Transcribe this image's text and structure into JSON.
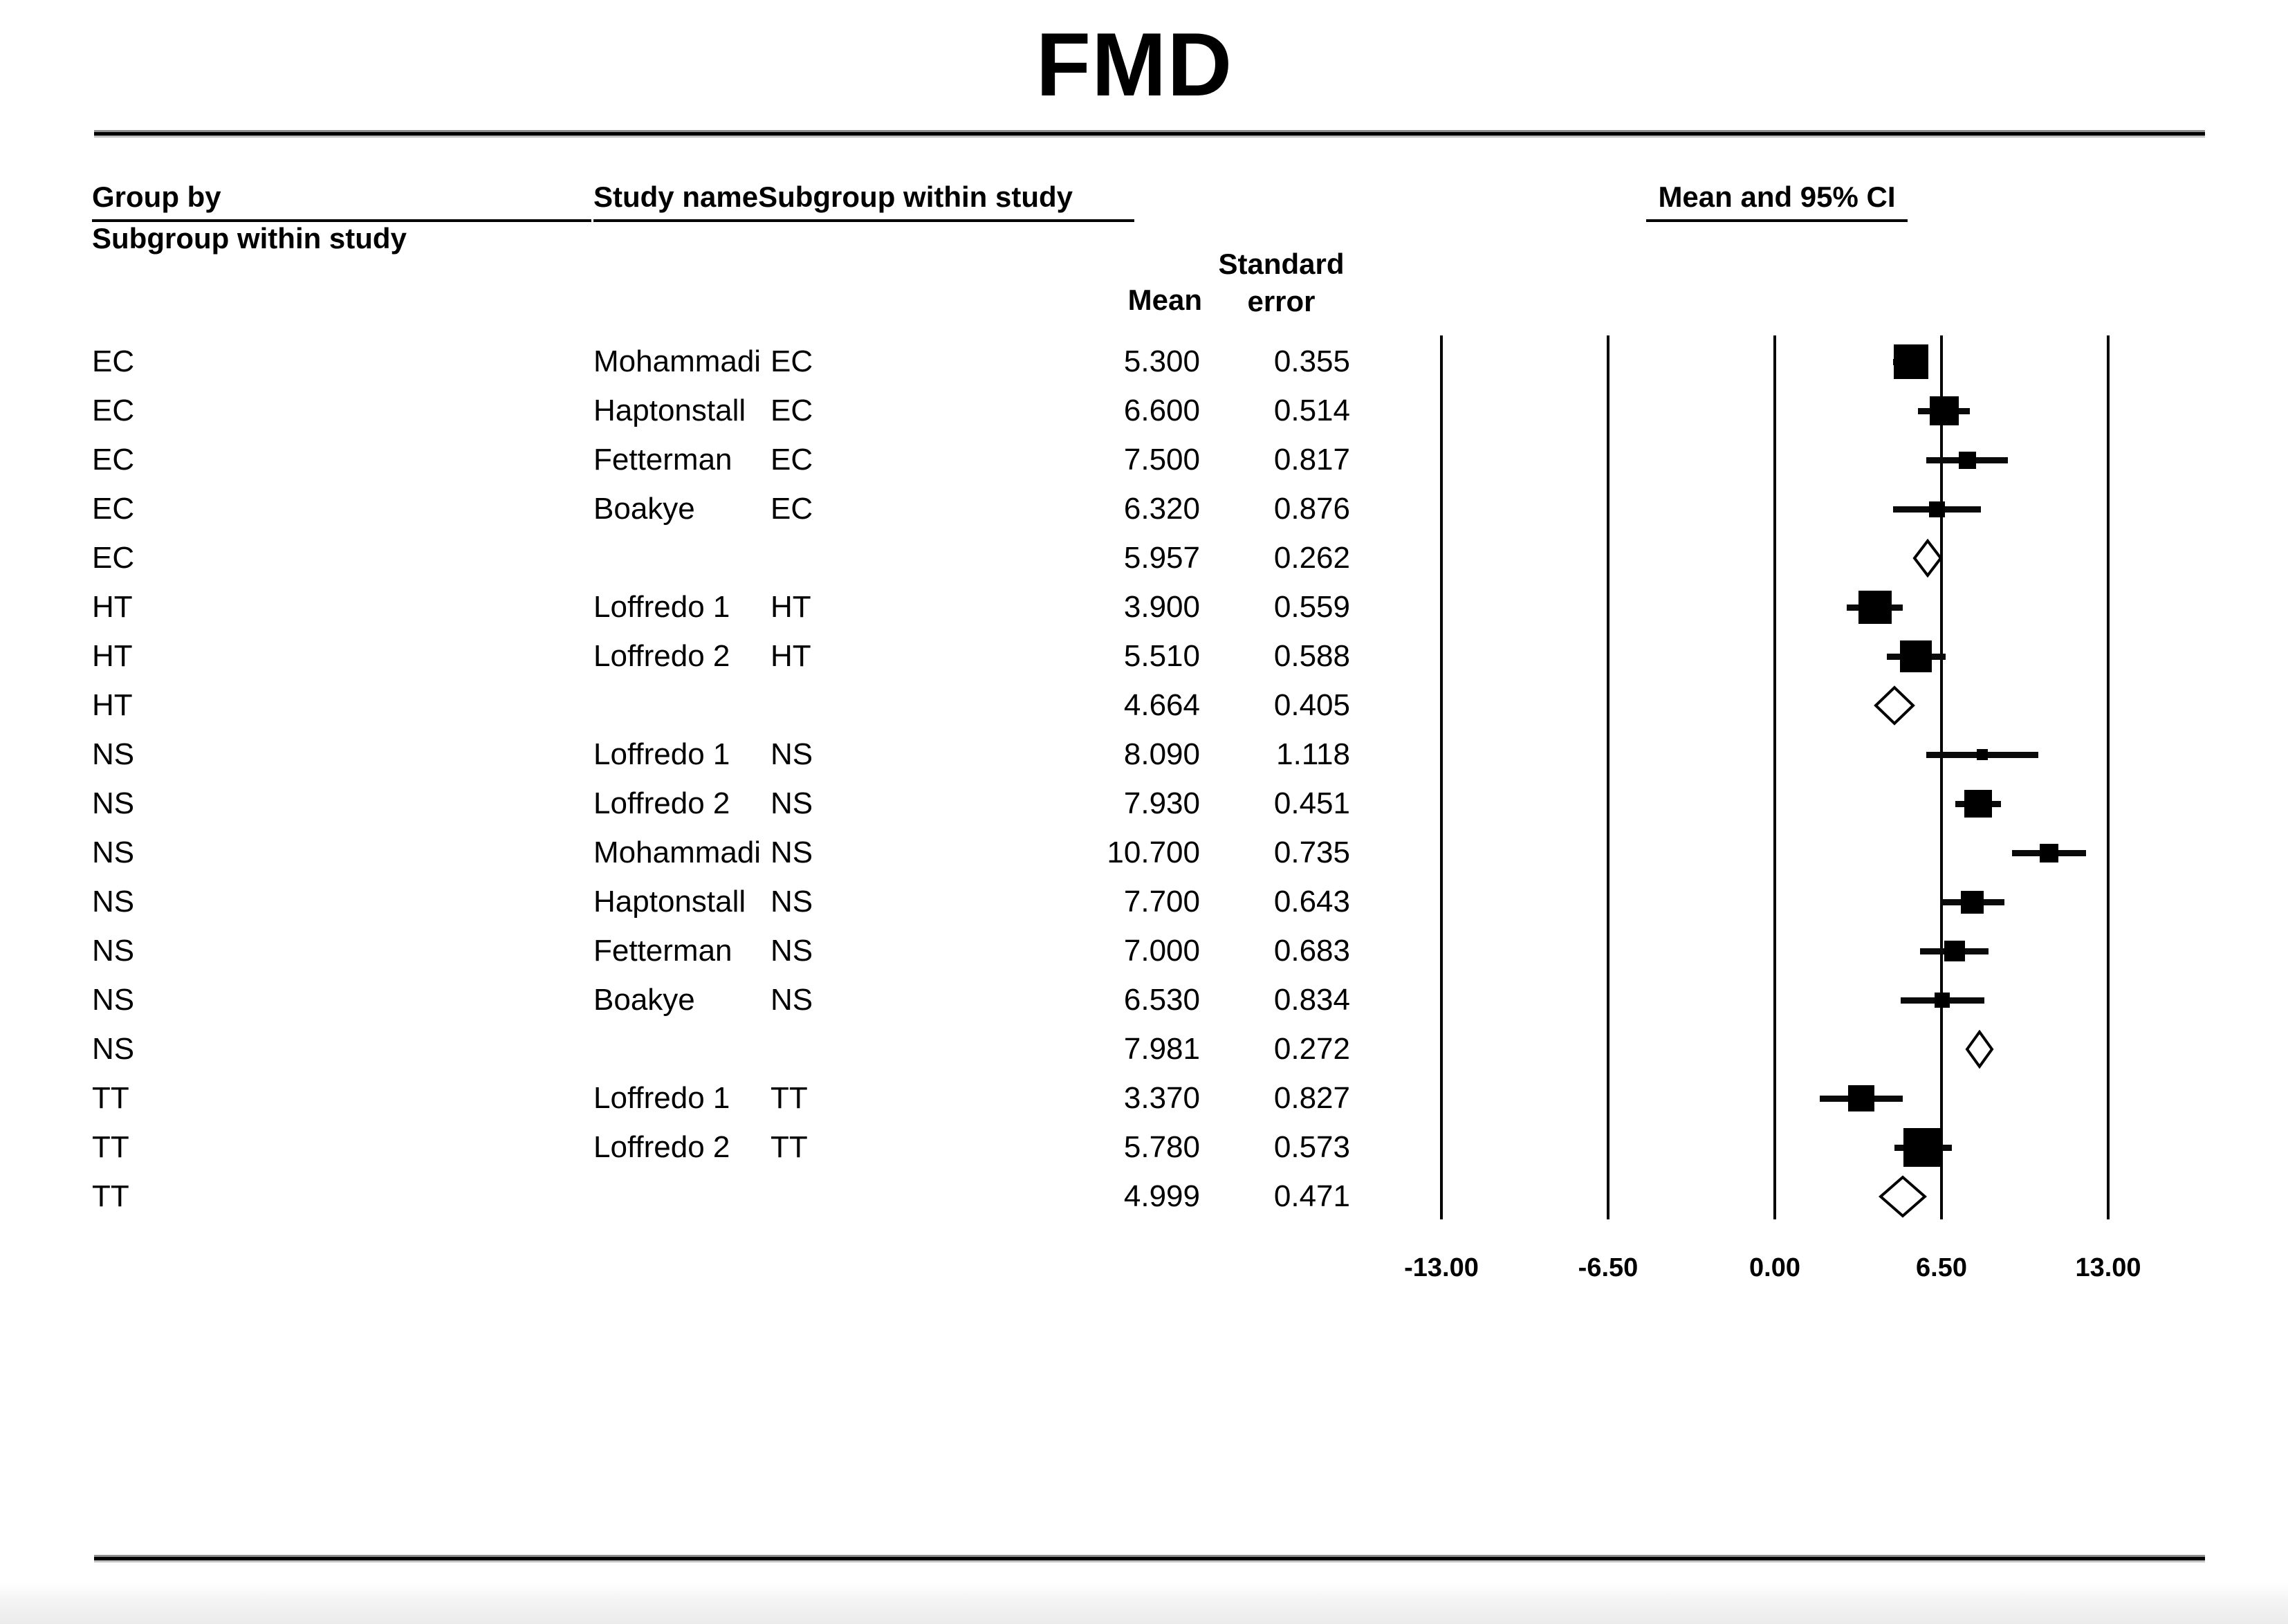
{
  "title": "FMD",
  "columns": {
    "group_header_line1": "Group by",
    "group_header_line2": "Subgroup within study",
    "study_header": "Study name",
    "subgroup_header": "Subgroup within study",
    "mean_header": "Mean",
    "se_header_line1": "Standard",
    "se_header_line2": "error",
    "plot_header": "Mean and 95% CI"
  },
  "rows": [
    {
      "type": "study",
      "group": "EC",
      "study": "Mohammadi",
      "subgroup": "EC",
      "mean": "5.300",
      "se": "0.355",
      "marker": 50
    },
    {
      "type": "study",
      "group": "EC",
      "study": "Haptonstall",
      "subgroup": "EC",
      "mean": "6.600",
      "se": "0.514",
      "marker": 42
    },
    {
      "type": "study",
      "group": "EC",
      "study": "Fetterman",
      "subgroup": "EC",
      "mean": "7.500",
      "se": "0.817",
      "marker": 25
    },
    {
      "type": "study",
      "group": "EC",
      "study": "Boakye",
      "subgroup": "EC",
      "mean": "6.320",
      "se": "0.876",
      "marker": 23
    },
    {
      "type": "summary",
      "group": "EC",
      "study": "",
      "subgroup": "",
      "mean": "5.957",
      "se": "0.262",
      "marker_w": 44,
      "marker_h": 56
    },
    {
      "type": "study",
      "group": "HT",
      "study": "Loffredo 1",
      "subgroup": "HT",
      "mean": "3.900",
      "se": "0.559",
      "marker": 48
    },
    {
      "type": "study",
      "group": "HT",
      "study": "Loffredo 2",
      "subgroup": "HT",
      "mean": "5.510",
      "se": "0.588",
      "marker": 46
    },
    {
      "type": "summary",
      "group": "HT",
      "study": "",
      "subgroup": "",
      "mean": "4.664",
      "se": "0.405",
      "marker_w": 60,
      "marker_h": 58
    },
    {
      "type": "study",
      "group": "NS",
      "study": "Loffredo 1",
      "subgroup": "NS",
      "mean": "8.090",
      "se": "1.118",
      "marker": 16
    },
    {
      "type": "study",
      "group": "NS",
      "study": "Loffredo 2",
      "subgroup": "NS",
      "mean": "7.930",
      "se": "0.451",
      "marker": 40
    },
    {
      "type": "study",
      "group": "NS",
      "study": "Mohammadi",
      "subgroup": "NS",
      "mean": "10.700",
      "se": "0.735",
      "marker": 27
    },
    {
      "type": "study",
      "group": "NS",
      "study": "Haptonstall",
      "subgroup": "NS",
      "mean": "7.700",
      "se": "0.643",
      "marker": 33
    },
    {
      "type": "study",
      "group": "NS",
      "study": "Fetterman",
      "subgroup": "NS",
      "mean": "7.000",
      "se": "0.683",
      "marker": 30
    },
    {
      "type": "study",
      "group": "NS",
      "study": "Boakye",
      "subgroup": "NS",
      "mean": "6.530",
      "se": "0.834",
      "marker": 22
    },
    {
      "type": "summary",
      "group": "NS",
      "study": "",
      "subgroup": "",
      "mean": "7.981",
      "se": "0.272",
      "marker_w": 42,
      "marker_h": 56
    },
    {
      "type": "study",
      "group": "TT",
      "study": "Loffredo 1",
      "subgroup": "TT",
      "mean": "3.370",
      "se": "0.827",
      "marker": 38
    },
    {
      "type": "study",
      "group": "TT",
      "study": "Loffredo 2",
      "subgroup": "TT",
      "mean": "5.780",
      "se": "0.573",
      "marker": 56
    },
    {
      "type": "summary",
      "group": "TT",
      "study": "",
      "subgroup": "",
      "mean": "4.999",
      "se": "0.471",
      "marker_w": 70,
      "marker_h": 62
    }
  ],
  "axis": {
    "ticks": [
      {
        "label": "-13.00",
        "value": -13
      },
      {
        "label": "-6.50",
        "value": -6.5
      },
      {
        "label": "0.00",
        "value": 0
      },
      {
        "label": "6.50",
        "value": 6.5
      },
      {
        "label": "13.00",
        "value": 13
      }
    ]
  },
  "chart_data": {
    "type": "forest",
    "title": "FMD",
    "effect_measure": "Mean and 95% CI",
    "ci_level": 0.95,
    "xlim": [
      -13,
      13
    ],
    "x_ticks": [
      -13.0,
      -6.5,
      0.0,
      6.5,
      13.0
    ],
    "grouping": "Subgroup within study",
    "groups": [
      {
        "name": "EC",
        "studies": [
          {
            "study": "Mohammadi",
            "subgroup": "EC",
            "mean": 5.3,
            "se": 0.355
          },
          {
            "study": "Haptonstall",
            "subgroup": "EC",
            "mean": 6.6,
            "se": 0.514
          },
          {
            "study": "Fetterman",
            "subgroup": "EC",
            "mean": 7.5,
            "se": 0.817
          },
          {
            "study": "Boakye",
            "subgroup": "EC",
            "mean": 6.32,
            "se": 0.876
          }
        ],
        "summary": {
          "mean": 5.957,
          "se": 0.262
        }
      },
      {
        "name": "HT",
        "studies": [
          {
            "study": "Loffredo 1",
            "subgroup": "HT",
            "mean": 3.9,
            "se": 0.559
          },
          {
            "study": "Loffredo 2",
            "subgroup": "HT",
            "mean": 5.51,
            "se": 0.588
          }
        ],
        "summary": {
          "mean": 4.664,
          "se": 0.405
        }
      },
      {
        "name": "NS",
        "studies": [
          {
            "study": "Loffredo 1",
            "subgroup": "NS",
            "mean": 8.09,
            "se": 1.118
          },
          {
            "study": "Loffredo 2",
            "subgroup": "NS",
            "mean": 7.93,
            "se": 0.451
          },
          {
            "study": "Mohammadi",
            "subgroup": "NS",
            "mean": 10.7,
            "se": 0.735
          },
          {
            "study": "Haptonstall",
            "subgroup": "NS",
            "mean": 7.7,
            "se": 0.643
          },
          {
            "study": "Fetterman",
            "subgroup": "NS",
            "mean": 7.0,
            "se": 0.683
          },
          {
            "study": "Boakye",
            "subgroup": "NS",
            "mean": 6.53,
            "se": 0.834
          }
        ],
        "summary": {
          "mean": 7.981,
          "se": 0.272
        }
      },
      {
        "name": "TT",
        "studies": [
          {
            "study": "Loffredo 1",
            "subgroup": "TT",
            "mean": 3.37,
            "se": 0.827
          },
          {
            "study": "Loffredo 2",
            "subgroup": "TT",
            "mean": 5.78,
            "se": 0.573
          }
        ],
        "summary": {
          "mean": 4.999,
          "se": 0.471
        }
      }
    ]
  }
}
